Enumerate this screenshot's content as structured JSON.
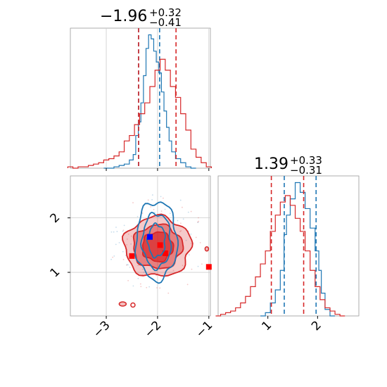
{
  "chart_data": [
    {
      "type": "histogram",
      "panel": "top-left marginal",
      "title": {
        "median": "−1.96",
        "upper": "+0.32",
        "lower": "−0.41"
      },
      "xlim": [
        -3.7,
        -0.97
      ],
      "xticks": [
        -3,
        -2,
        -1
      ],
      "grid": true,
      "series": [
        {
          "color": "#1f77b4",
          "bin_centers": [
            -3.0,
            -2.9,
            -2.8,
            -2.7,
            -2.6,
            -2.5,
            -2.45,
            -2.4,
            -2.35,
            -2.3,
            -2.25,
            -2.2,
            -2.15,
            -2.1,
            -2.05,
            -2.0,
            -1.95,
            -1.9,
            -1.85,
            -1.8,
            -1.75,
            -1.7,
            -1.6,
            -1.5,
            -1.4,
            -1.3
          ],
          "counts": [
            0,
            0,
            1,
            2,
            3,
            6,
            10,
            24,
            34,
            48,
            68,
            88,
            98,
            95,
            86,
            78,
            70,
            56,
            42,
            30,
            20,
            12,
            7,
            4,
            1,
            0
          ],
          "quantiles": [
            -2.37,
            -1.96
          ]
        },
        {
          "color": "#d62728",
          "bin_centers": [
            -3.7,
            -3.6,
            -3.5,
            -3.4,
            -3.3,
            -3.2,
            -3.1,
            -3.0,
            -2.9,
            -2.8,
            -2.7,
            -2.6,
            -2.5,
            -2.4,
            -2.3,
            -2.2,
            -2.1,
            -2.0,
            -1.9,
            -1.8,
            -1.7,
            -1.6,
            -1.5,
            -1.4,
            -1.3,
            -1.2,
            -1.1,
            -1.0
          ],
          "counts": [
            1,
            0,
            1,
            1,
            2,
            3,
            4,
            6,
            7,
            9,
            12,
            20,
            24,
            32,
            40,
            48,
            60,
            72,
            80,
            72,
            60,
            52,
            40,
            28,
            14,
            8,
            4,
            1
          ],
          "quantiles": [
            -2.37,
            -1.64
          ]
        }
      ]
    },
    {
      "type": "histogram",
      "panel": "bottom-right marginal",
      "title": {
        "median": "1.39",
        "upper": "+0.33",
        "lower": "−0.31"
      },
      "xlim": [
        0.0,
        2.83
      ],
      "xticks": [
        1,
        2
      ],
      "grid": false,
      "series": [
        {
          "color": "#1f77b4",
          "bin_centers": [
            0.9,
            1.0,
            1.1,
            1.2,
            1.3,
            1.35,
            1.4,
            1.5,
            1.6,
            1.7,
            1.8,
            1.9,
            2.0,
            2.05,
            2.1,
            2.2,
            2.3
          ],
          "counts": [
            0,
            2,
            8,
            16,
            28,
            50,
            62,
            72,
            82,
            76,
            66,
            54,
            40,
            28,
            14,
            4,
            0
          ],
          "quantiles": [
            1.33,
            1.97
          ]
        },
        {
          "color": "#d62728",
          "bin_centers": [
            0.0,
            0.1,
            0.2,
            0.3,
            0.4,
            0.5,
            0.6,
            0.7,
            0.8,
            0.9,
            1.0,
            1.1,
            1.2,
            1.3,
            1.4,
            1.5,
            1.6,
            1.7,
            1.8,
            1.9,
            2.0,
            2.1,
            2.2,
            2.3,
            2.4,
            2.5
          ],
          "counts": [
            0,
            1,
            2,
            3,
            5,
            8,
            12,
            18,
            24,
            32,
            40,
            52,
            62,
            70,
            74,
            68,
            60,
            52,
            40,
            28,
            18,
            10,
            5,
            3,
            1,
            0
          ],
          "quantiles": [
            1.07,
            1.72
          ]
        }
      ]
    },
    {
      "type": "contour",
      "panel": "bottom-left joint",
      "xlim": [
        -3.7,
        -0.97
      ],
      "ylim": [
        0.2,
        2.77
      ],
      "xticks": [
        -3,
        -2,
        -1
      ],
      "yticks": [
        1,
        2
      ],
      "grid": true,
      "series": [
        {
          "color": "#d62728",
          "filled": true,
          "center": [
            -2.0,
            1.47
          ],
          "levels_radii": [
            [
              0.65,
              0.55
            ],
            [
              0.48,
              0.4
            ],
            [
              0.3,
              0.27
            ]
          ],
          "points": [
            [
              -2.5,
              1.3
            ],
            [
              -1.85,
              1.35
            ],
            [
              -1.95,
              1.5
            ],
            [
              -1.0,
              1.1
            ]
          ]
        },
        {
          "color": "#1f77b4",
          "filled": false,
          "center": [
            -2.02,
            1.58
          ],
          "levels_radii": [
            [
              0.4,
              0.72
            ],
            [
              0.28,
              0.5
            ],
            [
              0.17,
              0.3
            ]
          ],
          "points": [
            [
              -2.15,
              1.65
            ]
          ]
        }
      ]
    }
  ]
}
